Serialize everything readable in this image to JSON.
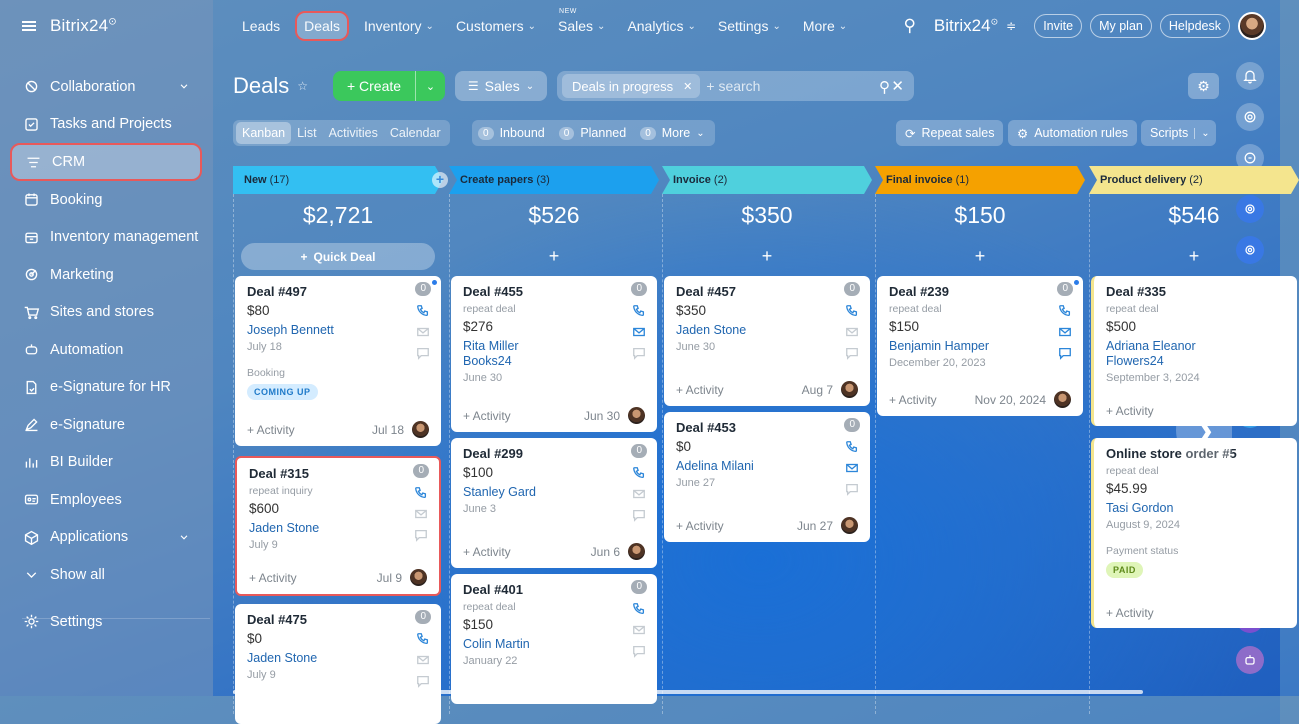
{
  "app": {
    "brand": "Bitrix24",
    "brand_mark": "⊙"
  },
  "sidebar": {
    "items": [
      {
        "label": "Collaboration",
        "icon": "collaboration-icon",
        "chevron": true
      },
      {
        "label": "Tasks and Projects",
        "icon": "checkbox-icon"
      },
      {
        "label": "CRM",
        "icon": "crm-filter-icon",
        "active": true
      },
      {
        "label": "Booking",
        "icon": "calendar-icon"
      },
      {
        "label": "Inventory management",
        "icon": "inventory-icon"
      },
      {
        "label": "Marketing",
        "icon": "marketing-icon"
      },
      {
        "label": "Sites and stores",
        "icon": "cart-icon"
      },
      {
        "label": "Automation",
        "icon": "robot-icon"
      },
      {
        "label": "e-Signature for HR",
        "icon": "document-sign-icon"
      },
      {
        "label": "e-Signature",
        "icon": "pen-icon"
      },
      {
        "label": "BI Builder",
        "icon": "bar-chart-icon"
      },
      {
        "label": "Employees",
        "icon": "id-card-icon"
      },
      {
        "label": "Applications",
        "icon": "cube-icon",
        "chevron": true
      },
      {
        "label": "Show all",
        "icon": "chevron-down-icon"
      }
    ],
    "settings": "Settings"
  },
  "topnav": {
    "items": [
      "Leads",
      "Deals",
      "Inventory",
      "Customers",
      "Sales",
      "Analytics",
      "Settings",
      "More"
    ],
    "new_badge": "NEW",
    "brand": "Bitrix24",
    "invite": "Invite",
    "my_plan": "My plan",
    "helpdesk": "Helpdesk"
  },
  "toolbar": {
    "title": "Deals",
    "create": "Create",
    "sales": "Sales",
    "filter_chip": "Deals in progress",
    "search_placeholder": "+ search"
  },
  "views": {
    "tabs": [
      "Kanban",
      "List",
      "Activities",
      "Calendar"
    ],
    "counters": [
      {
        "n": "0",
        "label": "Inbound"
      },
      {
        "n": "0",
        "label": "Planned"
      },
      {
        "n": "0",
        "label": "More"
      }
    ],
    "repeat_sales": "Repeat sales",
    "automation_rules": "Automation rules",
    "scripts": "Scripts"
  },
  "columns": [
    {
      "name": "New",
      "count": "(17)",
      "sum": "$2,721",
      "color": "#33bff2",
      "add": "Quick Deal",
      "cards": [
        {
          "title": "Deal #497",
          "amount": "$80",
          "client": "Joseph Bennett",
          "date": "July 18",
          "booking": "Booking",
          "badge": "COMING UP",
          "act": "+ Activity",
          "fdate": "Jul 18",
          "ctr": "0",
          "dot": true
        },
        {
          "title": "Deal #315",
          "sub": "repeat inquiry",
          "amount": "$600",
          "client": "Jaden Stone",
          "date": "July 9",
          "act": "+ Activity",
          "fdate": "Jul 9",
          "ctr": "0",
          "hl": true
        },
        {
          "title": "Deal #475",
          "amount": "$0",
          "client": "Jaden Stone",
          "date": "July 9",
          "ctr": "0"
        }
      ]
    },
    {
      "name": "Create papers",
      "count": "(3)",
      "sum": "$526",
      "color": "#1ca0ee",
      "cards": [
        {
          "title": "Deal #455",
          "sub": "repeat deal",
          "amount": "$276",
          "client": "Rita Miller\nBooks24",
          "date": "June 30",
          "act": "+ Activity",
          "fdate": "Jun 30",
          "ctr": "0"
        },
        {
          "title": "Deal #299",
          "amount": "$100",
          "client": "Stanley Gard",
          "date": "June 3",
          "act": "+ Activity",
          "fdate": "Jun 6",
          "ctr": "0"
        },
        {
          "title": "Deal #401",
          "sub": "repeat deal",
          "amount": "$150",
          "client": "Colin Martin",
          "date": "January 22",
          "ctr": "0"
        }
      ]
    },
    {
      "name": "Invoice",
      "count": "(2)",
      "sum": "$350",
      "color": "#4fd0dd",
      "cards": [
        {
          "title": "Deal #457",
          "amount": "$350",
          "client": "Jaden Stone",
          "date": "June 30",
          "act": "+ Activity",
          "fdate": "Aug 7",
          "ctr": "0"
        },
        {
          "title": "Deal #453",
          "amount": "$0",
          "client": "Adelina Milani",
          "date": "June 27",
          "act": "+ Activity",
          "fdate": "Jun 27",
          "ctr": "0"
        }
      ]
    },
    {
      "name": "Final invoice",
      "count": "(1)",
      "sum": "$150",
      "color": "#f5a100",
      "cards": [
        {
          "title": "Deal #239",
          "sub": "repeat deal",
          "amount": "$150",
          "client": "Benjamin Hamper",
          "date": "December 20, 2023",
          "act": "+ Activity",
          "fdate": "Nov 20, 2024",
          "ctr": "0",
          "dot": true
        }
      ]
    },
    {
      "name": "Product delivery",
      "count": "(2)",
      "sum": "$546",
      "color": "#f4e58e",
      "cards": [
        {
          "title": "Deal #335",
          "sub": "repeat deal",
          "amount": "$500",
          "client": "Adriana Eleanor\nFlowers24",
          "date": "September 3, 2024",
          "act": "+ Activity"
        },
        {
          "title": "Online store order #5",
          "sub": "repeat deal",
          "amount": "$45.99",
          "client": "Tasi Gordon",
          "date": "August 9, 2024",
          "booking": "Payment status",
          "badge": "PAID",
          "act": "+ Activity"
        }
      ]
    }
  ]
}
